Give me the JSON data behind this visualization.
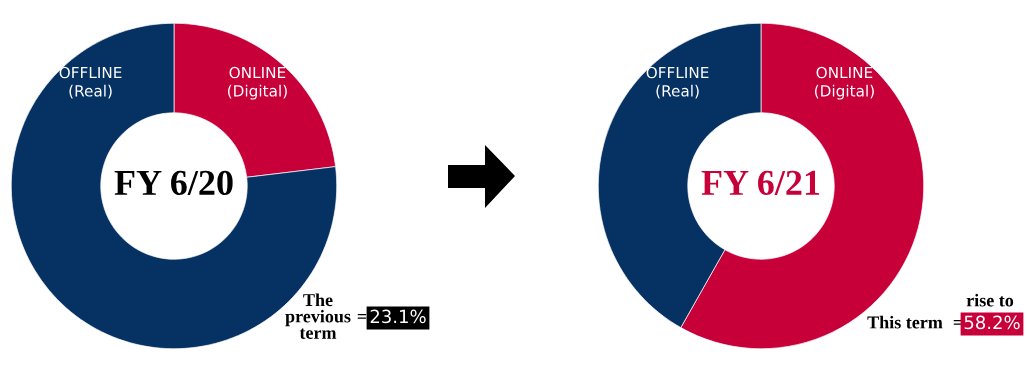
{
  "chart_data": [
    {
      "type": "donut",
      "title": "FY 6/20",
      "categories": [
        "ONLINE\n(Digital)",
        "OFFLINE\n(Real)"
      ],
      "values": [
        23.1,
        76.9
      ],
      "colors": [
        "#c8003a",
        "#063163"
      ],
      "annotations": [
        "The\nprevious\nterm",
        "=",
        "23.1%"
      ]
    },
    {
      "type": "donut",
      "title": "FY 6/21",
      "categories": [
        "ONLINE\n(Digital)",
        "OFFLINE\n(Real)"
      ],
      "values": [
        58.2,
        41.8
      ],
      "colors": [
        "#c8003a",
        "#063163"
      ],
      "annotations": [
        "rise to",
        "This term",
        "=",
        "58.2%"
      ]
    }
  ]
}
